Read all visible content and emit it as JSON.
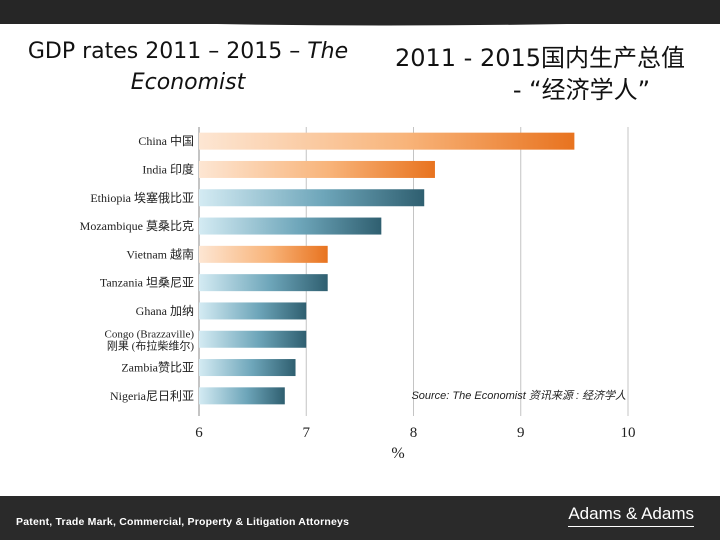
{
  "header": {
    "title_en_line1": "GDP rates 2011 – 2015 – ",
    "title_en_italic": "The",
    "title_en_line2": "Economist",
    "title_cn_line1": "2011 - 2015国内生产总值",
    "title_cn_line2": "- “经济学人”"
  },
  "chart_data": {
    "type": "bar",
    "orientation": "horizontal",
    "categories": [
      [
        "China 中国"
      ],
      [
        "India  印度"
      ],
      [
        "Ethiopia 埃塞俄比亚"
      ],
      [
        "Mozambique 莫桑比克"
      ],
      [
        "Vietnam 越南"
      ],
      [
        "Tanzania 坦桑尼亚"
      ],
      [
        "Ghana 加纳"
      ],
      [
        "Congo (Brazzaville)",
        "刚果 (布拉柴维尔)"
      ],
      [
        "Zambia赞比亚"
      ],
      [
        "Nigeria尼日利亚"
      ]
    ],
    "values": [
      9.5,
      8.2,
      8.1,
      7.7,
      7.2,
      7.2,
      7.0,
      7.0,
      6.9,
      6.8
    ],
    "bar_colors": [
      "orange",
      "orange",
      "blue",
      "blue",
      "orange",
      "blue",
      "blue",
      "blue",
      "blue",
      "blue"
    ],
    "xlim": [
      6,
      10
    ],
    "xticks": [
      "6",
      "7",
      "8",
      "9",
      "10"
    ],
    "xlabel": "%",
    "grid": true,
    "source_note": "Source: The Economist  资讯来源 : 经济学人"
  },
  "colors": {
    "orange_dark": "#e8731f",
    "orange_light": "#fde6d3",
    "blue_dark": "#2f5f70",
    "blue_light": "#d4ebf3"
  },
  "footer": {
    "tagline": "Patent, Trade Mark, Commercial, Property & Litigation Attorneys",
    "logo": "Adams & Adams"
  }
}
